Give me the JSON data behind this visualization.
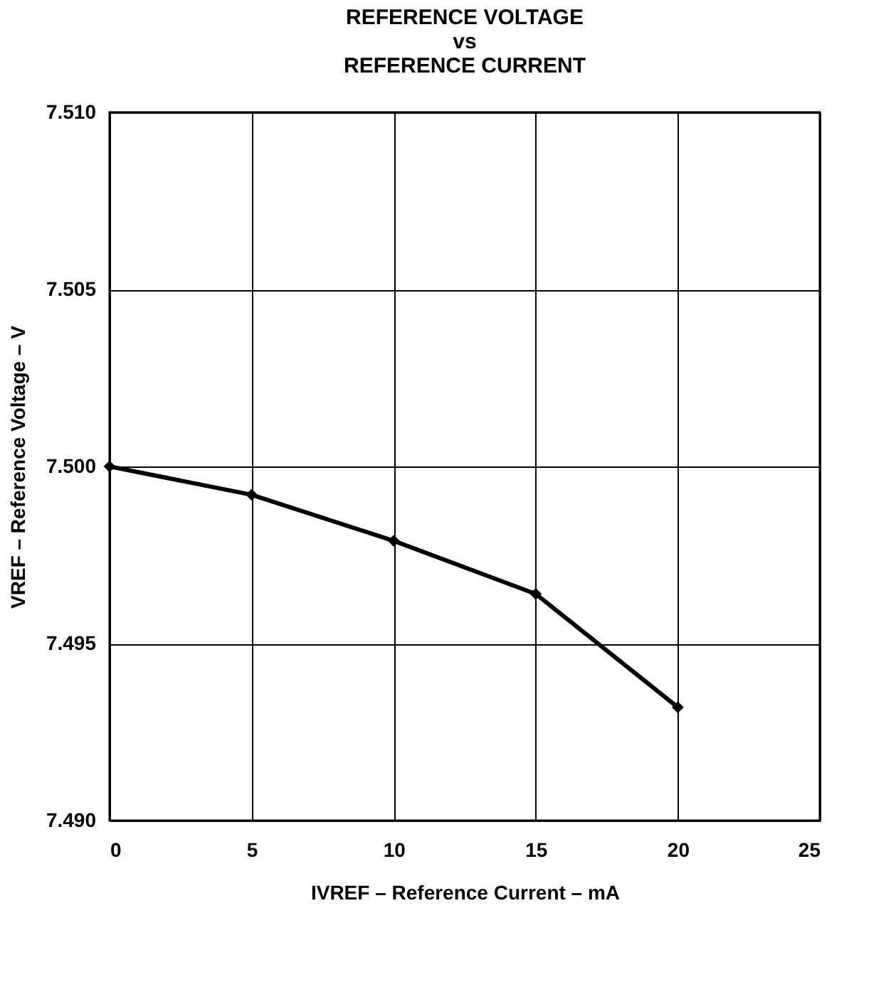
{
  "chart_data": {
    "type": "line",
    "title": "REFERENCE VOLTAGE\nvs\nREFERENCE CURRENT",
    "xlabel": "IVREF – Reference Current – mA",
    "ylabel": "VREF – Reference Voltage – V",
    "x": [
      0,
      5,
      10,
      15,
      20
    ],
    "series": [
      {
        "color": "#000000",
        "values": [
          7.5,
          7.4992,
          7.4979,
          7.4964,
          7.4932
        ]
      }
    ],
    "xlim": [
      0,
      25
    ],
    "xticks": [
      0,
      5,
      10,
      15,
      20,
      25
    ],
    "ylim": [
      7.49,
      7.51
    ],
    "yticks": [
      {
        "value": 7.49,
        "label": "7.490"
      },
      7.495,
      {
        "value": 7.5,
        "label": "7.500"
      },
      7.505,
      {
        "value": 7.51,
        "label": "7.510"
      }
    ],
    "grid": true,
    "marker": "diamond",
    "line_style": "solid"
  }
}
